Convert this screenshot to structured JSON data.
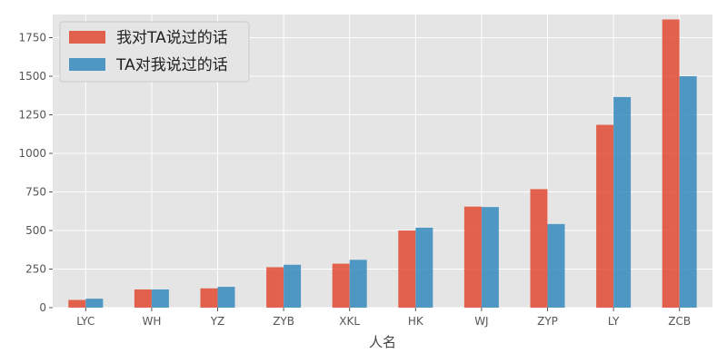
{
  "chart_data": {
    "type": "bar",
    "title": "",
    "xlabel": "人名",
    "ylabel": "",
    "categories": [
      "LYC",
      "WH",
      "YZ",
      "ZYB",
      "XKL",
      "HK",
      "WJ",
      "ZYP",
      "LY",
      "ZCB"
    ],
    "series": [
      {
        "name": "我对TA说过的话",
        "color": "#e24a33",
        "values": [
          50,
          118,
          125,
          262,
          285,
          500,
          655,
          768,
          1185,
          1868
        ]
      },
      {
        "name": "TA对我说过的话",
        "color": "#348abd",
        "values": [
          58,
          118,
          135,
          278,
          310,
          518,
          652,
          542,
          1365,
          1500
        ]
      }
    ],
    "ylim": [
      0,
      1900
    ],
    "yticks": [
      0,
      250,
      500,
      750,
      1000,
      1250,
      1500,
      1750
    ],
    "grid": true,
    "legend": "top-left"
  }
}
